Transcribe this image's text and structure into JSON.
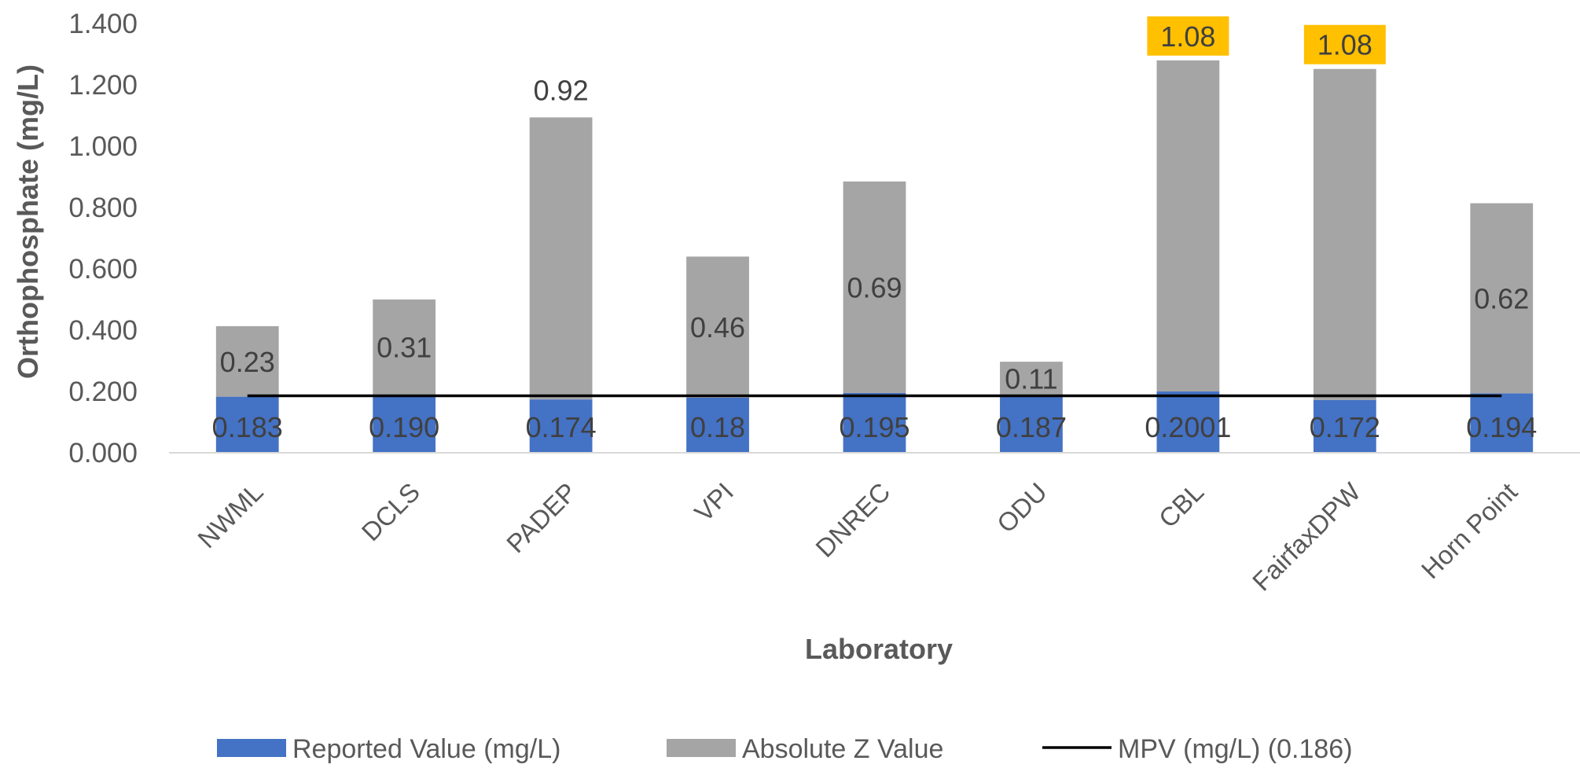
{
  "chart_data": {
    "type": "bar",
    "stacked": true,
    "categories": [
      "NWML",
      "DCLS",
      "PADEP",
      "VPI",
      "DNREC",
      "ODU",
      "CBL",
      "FairfaxDPW",
      "Horn Point"
    ],
    "series": [
      {
        "name": "Reported Value (mg/L)",
        "values": [
          0.183,
          0.19,
          0.174,
          0.18,
          0.195,
          0.187,
          0.2001,
          0.172,
          0.194
        ],
        "labels": [
          "0.183",
          "0.190",
          "0.174",
          "0.18",
          "0.195",
          "0.187",
          "0.2001",
          "0.172",
          "0.194"
        ],
        "color": "#4472C4"
      },
      {
        "name": "Absolute Z Value",
        "values": [
          0.23,
          0.31,
          0.92,
          0.46,
          0.69,
          0.11,
          1.08,
          1.08,
          0.62
        ],
        "labels": [
          "0.23",
          "0.31",
          "0.92",
          "0.46",
          "0.69",
          "0.11",
          "1.08",
          "1.08",
          "0.62"
        ],
        "color": "#A5A5A5",
        "highlighted_labels": [
          "CBL",
          "FairfaxDPW"
        ],
        "highlight_color": "#FFC000"
      },
      {
        "name": "MPV (mg/L) (0.186)",
        "type": "line",
        "value": 0.186,
        "color": "#000000"
      }
    ],
    "xlabel": "Laboratory",
    "ylabel": "Orthophosphate (mg/L)",
    "ylim": [
      0,
      1.4
    ],
    "yticks": [
      "0.000",
      "0.200",
      "0.400",
      "0.600",
      "0.800",
      "1.000",
      "1.200",
      "1.400"
    ],
    "grid": false,
    "legend": "bottom"
  }
}
